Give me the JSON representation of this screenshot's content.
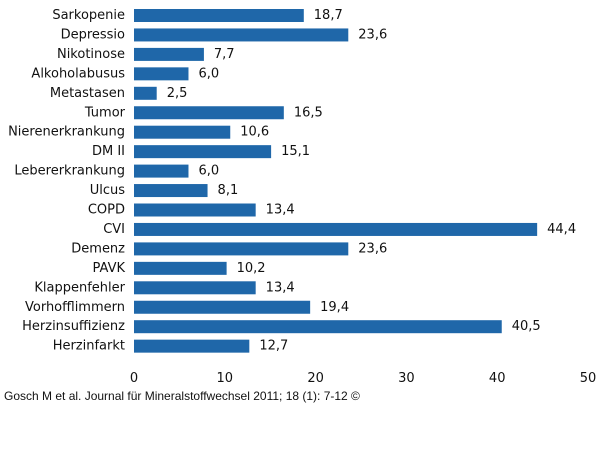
{
  "chart_data": {
    "type": "bar",
    "orientation": "horizontal",
    "categories": [
      "Sarkopenie",
      "Depressio",
      "Nikotinose",
      "Alkoholabusus",
      "Metastasen",
      "Tumor",
      "Nierenerkrankung",
      "DM II",
      "Lebererkrankung",
      "Ulcus",
      "COPD",
      "CVI",
      "Demenz",
      "PAVK",
      "Klappenfehler",
      "Vorhofflimmern",
      "Herzinsuffizienz",
      "Herzinfarkt"
    ],
    "values": [
      18.7,
      23.6,
      7.7,
      6.0,
      2.5,
      16.5,
      10.6,
      15.1,
      6.0,
      8.1,
      13.4,
      44.4,
      23.6,
      10.2,
      13.4,
      19.4,
      40.5,
      12.7
    ],
    "value_labels": [
      "18,7",
      "23,6",
      "7,7",
      "6,0",
      "2,5",
      "16,5",
      "10,6",
      "15,1",
      "6,0",
      "8,1",
      "13,4",
      "44,4",
      "23,6",
      "10,2",
      "13,4",
      "19,4",
      "40,5",
      "12,7"
    ],
    "xlim": [
      0,
      50
    ],
    "xticks": [
      "0",
      "10",
      "20",
      "30",
      "40",
      "50"
    ],
    "grid": false,
    "legend": "none",
    "title": "",
    "xlabel": "",
    "ylabel": "",
    "bar_color": "#1f67a9"
  },
  "caption": "Gosch M et al. Journal für Mineralstoffwechsel 2011; 18 (1): 7-12 ©"
}
